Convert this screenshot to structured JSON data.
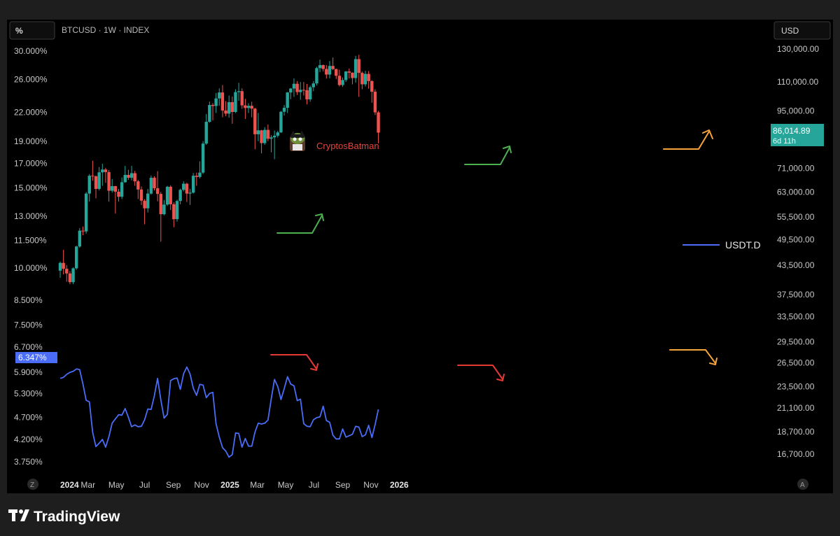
{
  "header": {
    "left_scale_label": "%",
    "symbol": "BTCUSD · 1W · INDEX",
    "right_scale_label": "USD"
  },
  "watermark": {
    "text": "CryptosBatman"
  },
  "legend": {
    "usdt_label": "USDT.D"
  },
  "price_badge": {
    "price": "86,014.89",
    "timer": "6d 11h"
  },
  "left_badge": {
    "value": "6.347%"
  },
  "bottom": {
    "left_icon": "Z",
    "right_icon": "A"
  },
  "brand": {
    "name": "TradingView"
  },
  "colors": {
    "background": "#000000",
    "frame": "#1e1e1e",
    "up": "#26a69a",
    "down": "#ef5350",
    "usdt_line": "#4a6cf7",
    "arrow_green": "#4caf50",
    "arrow_red": "#e53935",
    "arrow_orange": "#f5a33a"
  },
  "chart_data": {
    "type": "line",
    "title": "BTCUSD · 1W · INDEX",
    "x_ticks": [
      "2024",
      "Mar",
      "May",
      "Jul",
      "Sep",
      "Nov",
      "2025",
      "Mar",
      "May",
      "Jul",
      "Sep",
      "Nov",
      "2026"
    ],
    "left_axis": {
      "scale": "log",
      "ticks": [
        "30.000%",
        "26.000%",
        "22.000%",
        "19.000%",
        "17.000%",
        "15.000%",
        "13.000%",
        "11.500%",
        "10.000%",
        "8.500%",
        "7.500%",
        "6.700%",
        "5.900%",
        "5.300%",
        "4.700%",
        "4.200%",
        "3.750%"
      ],
      "tick_values": [
        30,
        26,
        22,
        19,
        17,
        15,
        13,
        11.5,
        10,
        8.5,
        7.5,
        6.7,
        5.9,
        5.3,
        4.7,
        4.2,
        3.75
      ]
    },
    "right_axis": {
      "scale": "log",
      "ticks": [
        "130,000.00",
        "110,000.00",
        "95,000.00",
        "71,000.00",
        "63,000.00",
        "55,500.00",
        "49,500.00",
        "43,500.00",
        "37,500.00",
        "33,500.00",
        "29,500.00",
        "26,500.00",
        "23,500.00",
        "21,100.00",
        "18,700.00",
        "16,700.00"
      ],
      "tick_values": [
        130000,
        110000,
        95000,
        71000,
        63000,
        55500,
        49500,
        43500,
        37500,
        33500,
        29500,
        26500,
        23500,
        21100,
        18700,
        16700
      ]
    },
    "series": [
      {
        "name": "USDT.D",
        "kind": "line",
        "axis": "left",
        "x": [
          "2024-01-01",
          "2024-01-08",
          "2024-01-15",
          "2024-01-22",
          "2024-01-29",
          "2024-02-05",
          "2024-02-12",
          "2024-02-19",
          "2024-02-26",
          "2024-03-04",
          "2024-03-11",
          "2024-03-18",
          "2024-03-25",
          "2024-04-01",
          "2024-04-08",
          "2024-04-15",
          "2024-04-22",
          "2024-04-29",
          "2024-05-06",
          "2024-05-13",
          "2024-05-20",
          "2024-05-27",
          "2024-06-03",
          "2024-06-10",
          "2024-06-17",
          "2024-06-24",
          "2024-07-01",
          "2024-07-08",
          "2024-07-15",
          "2024-07-22",
          "2024-07-29",
          "2024-08-05",
          "2024-08-12",
          "2024-08-19",
          "2024-08-26",
          "2024-09-02",
          "2024-09-09",
          "2024-09-16",
          "2024-09-23",
          "2024-09-30",
          "2024-10-07",
          "2024-10-14",
          "2024-10-21",
          "2024-10-28",
          "2024-11-04",
          "2024-11-11",
          "2024-11-18",
          "2024-11-25",
          "2024-12-02",
          "2024-12-09",
          "2024-12-16",
          "2024-12-23",
          "2024-12-30",
          "2025-01-06",
          "2025-01-13",
          "2025-01-20",
          "2025-01-27",
          "2025-02-03",
          "2025-02-10",
          "2025-02-17",
          "2025-02-24",
          "2025-03-03",
          "2025-03-10",
          "2025-03-17",
          "2025-03-24",
          "2025-03-31",
          "2025-04-07",
          "2025-04-14",
          "2025-04-21",
          "2025-04-28",
          "2025-05-05",
          "2025-05-12",
          "2025-05-19",
          "2025-05-26",
          "2025-06-02",
          "2025-06-09",
          "2025-06-16",
          "2025-06-23",
          "2025-06-30",
          "2025-07-07",
          "2025-07-14",
          "2025-07-21",
          "2025-07-28",
          "2025-08-04",
          "2025-08-11",
          "2025-08-18",
          "2025-08-25",
          "2025-09-01",
          "2025-09-08",
          "2025-09-15",
          "2025-09-22",
          "2025-09-29",
          "2025-10-06",
          "2025-10-13",
          "2025-10-20",
          "2025-10-27",
          "2025-11-03",
          "2025-11-10",
          "2025-11-17"
        ],
        "values": [
          5.72,
          5.75,
          5.84,
          5.9,
          5.93,
          6.0,
          5.98,
          5.56,
          5.12,
          5.08,
          4.35,
          4.05,
          4.12,
          4.2,
          4.04,
          4.26,
          4.56,
          4.66,
          4.76,
          4.75,
          4.91,
          4.7,
          4.48,
          4.52,
          4.48,
          4.49,
          4.64,
          4.9,
          4.89,
          5.24,
          5.72,
          5.13,
          4.68,
          4.77,
          5.66,
          5.71,
          5.73,
          5.41,
          5.86,
          6.06,
          5.85,
          5.44,
          5.25,
          5.55,
          5.53,
          5.19,
          5.3,
          5.33,
          4.55,
          4.25,
          4.03,
          3.96,
          3.84,
          3.89,
          4.34,
          4.33,
          4.04,
          4.22,
          4.06,
          4.06,
          4.36,
          4.56,
          4.54,
          4.56,
          4.63,
          5.16,
          5.69,
          5.49,
          5.14,
          5.43,
          5.77,
          5.56,
          5.51,
          5.11,
          5.15,
          4.55,
          4.49,
          4.48,
          4.64,
          4.69,
          4.71,
          4.97,
          4.62,
          4.58,
          4.29,
          4.21,
          4.21,
          4.43,
          4.25,
          4.28,
          4.31,
          4.49,
          4.47,
          4.26,
          4.3,
          4.51,
          4.24,
          4.53,
          4.89
        ]
      },
      {
        "name": "BTCUSD",
        "kind": "candlestick",
        "axis": "right",
        "fields": [
          "open",
          "high",
          "low",
          "close"
        ],
        "x": [
          "2024-01-01",
          "2024-01-08",
          "2024-01-15",
          "2024-01-22",
          "2024-01-29",
          "2024-02-05",
          "2024-02-12",
          "2024-02-19",
          "2024-02-26",
          "2024-03-04",
          "2024-03-11",
          "2024-03-18",
          "2024-03-25",
          "2024-04-01",
          "2024-04-08",
          "2024-04-15",
          "2024-04-22",
          "2024-04-29",
          "2024-05-06",
          "2024-05-13",
          "2024-05-20",
          "2024-05-27",
          "2024-06-03",
          "2024-06-10",
          "2024-06-17",
          "2024-06-24",
          "2024-07-01",
          "2024-07-08",
          "2024-07-15",
          "2024-07-22",
          "2024-07-29",
          "2024-08-05",
          "2024-08-12",
          "2024-08-19",
          "2024-08-26",
          "2024-09-02",
          "2024-09-09",
          "2024-09-16",
          "2024-09-23",
          "2024-09-30",
          "2024-10-07",
          "2024-10-14",
          "2024-10-21",
          "2024-10-28",
          "2024-11-04",
          "2024-11-11",
          "2024-11-18",
          "2024-11-25",
          "2024-12-02",
          "2024-12-09",
          "2024-12-16",
          "2024-12-23",
          "2024-12-30",
          "2025-01-06",
          "2025-01-13",
          "2025-01-20",
          "2025-01-27",
          "2025-02-03",
          "2025-02-10",
          "2025-02-17",
          "2025-02-24",
          "2025-03-03",
          "2025-03-10",
          "2025-03-17",
          "2025-03-24",
          "2025-03-31",
          "2025-04-07",
          "2025-04-14",
          "2025-04-21",
          "2025-04-28",
          "2025-05-05",
          "2025-05-12",
          "2025-05-19",
          "2025-05-26",
          "2025-06-02",
          "2025-06-09",
          "2025-06-16",
          "2025-06-23",
          "2025-06-30",
          "2025-07-07",
          "2025-07-14",
          "2025-07-21",
          "2025-07-28",
          "2025-08-04",
          "2025-08-11",
          "2025-08-18",
          "2025-08-25",
          "2025-09-01",
          "2025-09-08",
          "2025-09-15",
          "2025-09-22",
          "2025-09-29",
          "2025-10-06",
          "2025-10-13",
          "2025-10-20",
          "2025-10-27",
          "2025-11-03",
          "2025-11-10",
          "2025-11-17"
        ],
        "ohlc": [
          [
            42300,
            44300,
            40800,
            44000
          ],
          [
            44000,
            47000,
            41500,
            42700
          ],
          [
            42700,
            43500,
            40000,
            41700
          ],
          [
            41700,
            42200,
            39500,
            39900
          ],
          [
            39900,
            43000,
            39500,
            42800
          ],
          [
            42800,
            48000,
            42500,
            47800
          ],
          [
            47800,
            52500,
            47500,
            51800
          ],
          [
            51800,
            52900,
            50600,
            51600
          ],
          [
            51600,
            63000,
            51000,
            62500
          ],
          [
            62500,
            69000,
            60000,
            68400
          ],
          [
            68400,
            73800,
            66700,
            68200
          ],
          [
            68200,
            68500,
            61000,
            64000
          ],
          [
            64000,
            71500,
            63500,
            69600
          ],
          [
            69600,
            72700,
            65000,
            70600
          ],
          [
            70600,
            71200,
            66000,
            69700
          ],
          [
            69700,
            70400,
            60000,
            63400
          ],
          [
            63400,
            67300,
            62800,
            64900
          ],
          [
            64900,
            65000,
            56500,
            63100
          ],
          [
            63100,
            64000,
            60000,
            61500
          ],
          [
            61500,
            67800,
            60800,
            66200
          ],
          [
            66200,
            71900,
            66000,
            68700
          ],
          [
            68700,
            70500,
            67000,
            67700
          ],
          [
            67700,
            71900,
            66800,
            69300
          ],
          [
            69300,
            70100,
            65000,
            66500
          ],
          [
            66500,
            67000,
            60800,
            63800
          ],
          [
            63800,
            64800,
            59000,
            60300
          ],
          [
            60300,
            60800,
            53500,
            58000
          ],
          [
            58000,
            64000,
            56800,
            62500
          ],
          [
            62500,
            68500,
            62200,
            67700
          ],
          [
            67700,
            68200,
            63500,
            64200
          ],
          [
            64200,
            70000,
            60100,
            62400
          ],
          [
            62400,
            63000,
            49000,
            56300
          ],
          [
            56300,
            60500,
            56000,
            59100
          ],
          [
            59100,
            65000,
            58700,
            64700
          ],
          [
            64700,
            65200,
            57500,
            59200
          ],
          [
            59200,
            59800,
            52700,
            54900
          ],
          [
            54900,
            60600,
            54200,
            60200
          ],
          [
            60200,
            64100,
            59200,
            63700
          ],
          [
            63700,
            66500,
            63200,
            65700
          ],
          [
            65700,
            66000,
            59900,
            62500
          ],
          [
            62500,
            64000,
            59000,
            62800
          ],
          [
            62800,
            69400,
            62500,
            68400
          ],
          [
            68400,
            69500,
            65000,
            68000
          ],
          [
            68000,
            73600,
            67500,
            69500
          ],
          [
            69500,
            81500,
            69000,
            80500
          ],
          [
            80500,
            93500,
            80000,
            89900
          ],
          [
            89900,
            99600,
            89500,
            97900
          ],
          [
            97900,
            98800,
            90500,
            97400
          ],
          [
            97400,
            104000,
            94000,
            101200
          ],
          [
            101200,
            106500,
            97500,
            104300
          ],
          [
            104300,
            108300,
            92000,
            95200
          ],
          [
            95200,
            99800,
            92500,
            93700
          ],
          [
            93700,
            102700,
            91800,
            99300
          ],
          [
            99300,
            102200,
            89000,
            94500
          ],
          [
            94500,
            106000,
            94000,
            104500
          ],
          [
            104500,
            109500,
            100000,
            105000
          ],
          [
            105000,
            106500,
            96000,
            97700
          ],
          [
            97700,
            101000,
            91200,
            96400
          ],
          [
            96400,
            98800,
            94000,
            97500
          ],
          [
            97500,
            99500,
            92000,
            96100
          ],
          [
            96100,
            96500,
            78200,
            84400
          ],
          [
            84400,
            94000,
            81500,
            86100
          ],
          [
            86100,
            86300,
            76600,
            80700
          ],
          [
            80700,
            87500,
            80000,
            86300
          ],
          [
            86300,
            88700,
            81500,
            82500
          ],
          [
            82500,
            84000,
            77000,
            83100
          ],
          [
            83100,
            86000,
            74400,
            83800
          ],
          [
            83800,
            85900,
            83000,
            85200
          ],
          [
            85200,
            95000,
            85000,
            94600
          ],
          [
            94600,
            97900,
            92800,
            96500
          ],
          [
            96500,
            104600,
            94000,
            104300
          ],
          [
            104300,
            106700,
            100800,
            106400
          ],
          [
            106400,
            112000,
            102000,
            109000
          ],
          [
            109000,
            110500,
            103000,
            104500
          ],
          [
            104500,
            110000,
            100500,
            105700
          ],
          [
            105700,
            110000,
            102700,
            105500
          ],
          [
            105500,
            108900,
            98200,
            100700
          ],
          [
            100700,
            108000,
            99500,
            107100
          ],
          [
            107100,
            110500,
            105000,
            109200
          ],
          [
            109200,
            118800,
            108000,
            118000
          ],
          [
            118000,
            123200,
            115700,
            119800
          ],
          [
            119800,
            120200,
            116000,
            117500
          ],
          [
            117500,
            119800,
            111900,
            114200
          ],
          [
            114200,
            122300,
            112000,
            119300
          ],
          [
            119300,
            124500,
            116800,
            117400
          ],
          [
            117400,
            117700,
            111700,
            113500
          ],
          [
            113500,
            117000,
            107500,
            108300
          ],
          [
            108300,
            112500,
            107300,
            111100
          ],
          [
            111100,
            116300,
            110000,
            116000
          ],
          [
            116000,
            117700,
            112000,
            115300
          ],
          [
            115300,
            115500,
            108700,
            112200
          ],
          [
            112200,
            125600,
            109600,
            123500
          ],
          [
            123500,
            126200,
            102000,
            115200
          ],
          [
            115200,
            116000,
            106000,
            108700
          ],
          [
            108700,
            116400,
            107500,
            114600
          ],
          [
            114600,
            116300,
            106300,
            110500
          ],
          [
            110500,
            111000,
            99000,
            104700
          ],
          [
            104700,
            106000,
            93000,
            94300
          ],
          [
            94300,
            95000,
            80600,
            85100
          ]
        ]
      }
    ],
    "last_candle": {
      "open": 85100,
      "close": 86014.89,
      "color": "up"
    },
    "annotations": [
      {
        "kind": "arrow",
        "color": "green",
        "direction": "up",
        "near": "2024-08"
      },
      {
        "kind": "arrow",
        "color": "green",
        "direction": "up",
        "near": "2025-04"
      },
      {
        "kind": "arrow",
        "color": "orange",
        "direction": "up",
        "near": "2025-11"
      },
      {
        "kind": "arrow",
        "color": "red",
        "direction": "down",
        "near": "2024-09"
      },
      {
        "kind": "arrow",
        "color": "red",
        "direction": "down",
        "near": "2025-04"
      },
      {
        "kind": "arrow",
        "color": "orange",
        "direction": "down",
        "near": "2025-11"
      }
    ],
    "grid": false,
    "legend_placement": "right-middle"
  }
}
